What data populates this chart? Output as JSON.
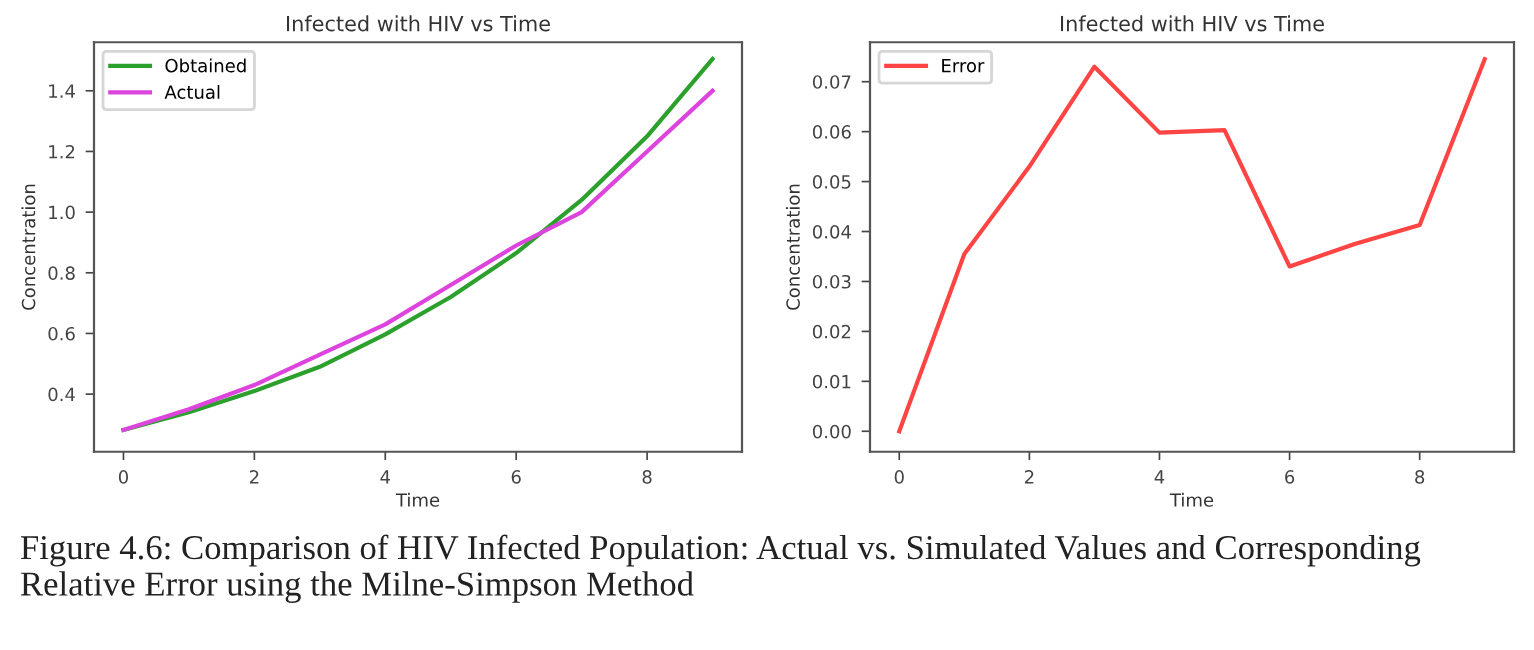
{
  "chart_data": [
    {
      "type": "line",
      "title": "Infected with HIV vs Time",
      "xlabel": "Time",
      "ylabel": "Concentration",
      "x": [
        0,
        1,
        2,
        3,
        4,
        5,
        6,
        7,
        8,
        9
      ],
      "series": [
        {
          "name": "Obtained",
          "color": "#2ca02c",
          "values": [
            0.282,
            0.34,
            0.41,
            0.49,
            0.597,
            0.72,
            0.865,
            1.04,
            1.25,
            1.505
          ]
        },
        {
          "name": "Actual",
          "color": "#dd44dd",
          "values": [
            0.282,
            0.35,
            0.43,
            0.53,
            0.63,
            0.76,
            0.89,
            1.0,
            1.2,
            1.4
          ]
        }
      ],
      "xlim": [
        -0.45,
        9.45
      ],
      "xticks": [
        0,
        2,
        4,
        6,
        8
      ],
      "ylim": [
        0.21,
        1.56
      ],
      "yticks": [
        {
          "value": 0.4,
          "label": "0.4"
        },
        {
          "value": 0.6,
          "label": "0.6"
        },
        {
          "value": 0.8,
          "label": "0.8"
        },
        {
          "value": 1.0,
          "label": "1.0"
        },
        {
          "value": 1.2,
          "label": "1.2"
        },
        {
          "value": 1.4,
          "label": "1.4"
        }
      ],
      "legend": "top left",
      "grid": false
    },
    {
      "type": "line",
      "title": "Infected with HIV vs Time",
      "xlabel": "Time",
      "ylabel": "Concentration",
      "x": [
        0,
        1,
        2,
        3,
        4,
        5,
        6,
        7,
        8,
        9
      ],
      "series": [
        {
          "name": "Error",
          "color": "#ff4444",
          "values": [
            0.0,
            0.0355,
            0.053,
            0.073,
            0.0598,
            0.0603,
            0.033,
            0.0375,
            0.0413,
            0.0745
          ]
        }
      ],
      "xlim": [
        -0.45,
        9.45
      ],
      "xticks": [
        0,
        2,
        4,
        6,
        8
      ],
      "ylim": [
        -0.0041,
        0.0779
      ],
      "yticks": [
        {
          "value": 0.0,
          "label": "0.00"
        },
        {
          "value": 0.01,
          "label": "0.01"
        },
        {
          "value": 0.02,
          "label": "0.02"
        },
        {
          "value": 0.03,
          "label": "0.03"
        },
        {
          "value": 0.04,
          "label": "0.04"
        },
        {
          "value": 0.05,
          "label": "0.05"
        },
        {
          "value": 0.06,
          "label": "0.06"
        },
        {
          "value": 0.07,
          "label": "0.07"
        }
      ],
      "legend": "top left",
      "grid": false,
      "annotations": [
        "Figure 4.6: Comparison of HIV Infected Population: Actual vs. Simulated Values and Corresponding Relative Error using the Milne-Simpson Method"
      ]
    }
  ]
}
